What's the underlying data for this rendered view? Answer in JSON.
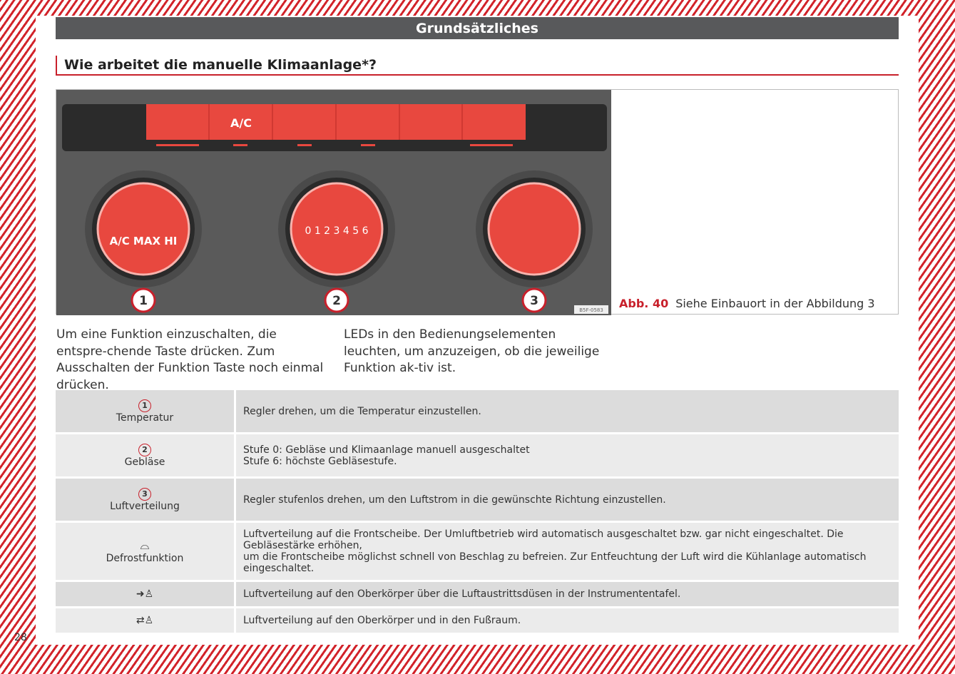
{
  "header": {
    "section": "Grundsätzliches",
    "title": "Wie arbeitet die manuelle Klimaanlage*?"
  },
  "figure": {
    "label": "Abb. 40",
    "caption": "Siehe Einbauort in der Abbildung 3",
    "image_code": "B5F-0583",
    "buttons": [
      "seat-heat-left",
      "A/C",
      "rear-defrost",
      "recirculation",
      "",
      "seat-heat-right"
    ],
    "knob1": {
      "text_left": "A/C",
      "text_max": "MAX",
      "text_right": "HI",
      "callout": "1"
    },
    "knob2": {
      "levels": [
        "0",
        "1",
        "2",
        "3",
        "4",
        "5",
        "6"
      ],
      "callout": "2"
    },
    "knob3": {
      "callout": "3"
    },
    "colors": {
      "accent": "#c8202b",
      "panel": "#5a5a5a",
      "knob": "#e8483f"
    }
  },
  "intro": {
    "left": "Um eine Funktion einzuschalten, die entspre-chende Taste drücken. Zum Ausschalten der Funktion Taste noch einmal drücken.",
    "right": "LEDs in den Bedienungselementen leuchten, um anzuzeigen, ob die jeweilige Funktion ak-tiv ist."
  },
  "table": [
    {
      "num": "1",
      "label": "Temperatur",
      "text": [
        "Regler drehen, um die Temperatur einzustellen."
      ]
    },
    {
      "num": "2",
      "label": "Gebläse",
      "text": [
        "Stufe 0: Gebläse und Klimaanlage manuell ausgeschaltet",
        "Stufe 6: höchste Gebläsestufe."
      ]
    },
    {
      "num": "3",
      "label": "Luftverteilung",
      "text": [
        "Regler stufenlos drehen, um den Luftstrom in die gewünschte Richtung einzustellen."
      ]
    },
    {
      "icon": "windshield-defrost-icon",
      "label": "Defrostfunktion",
      "text": [
        "Luftverteilung auf die Frontscheibe. Der Umluftbetrieb wird automatisch ausgeschaltet bzw. gar nicht eingeschaltet. Die Gebläsestärke erhöhen,",
        "um die Frontscheibe möglichst schnell von Beschlag zu befreien. Zur Entfeuchtung der Luft wird die Kühlanlage automatisch eingeschaltet."
      ]
    },
    {
      "icon": "air-upper-body-icon",
      "text": [
        "Luftverteilung auf den Oberkörper über die Luftaustrittsdüsen in der Instrumententafel."
      ]
    },
    {
      "icon": "air-upper-body-footwell-icon",
      "text": [
        "Luftverteilung auf den Oberkörper und in den Fußraum."
      ]
    }
  ],
  "page_number": "28"
}
